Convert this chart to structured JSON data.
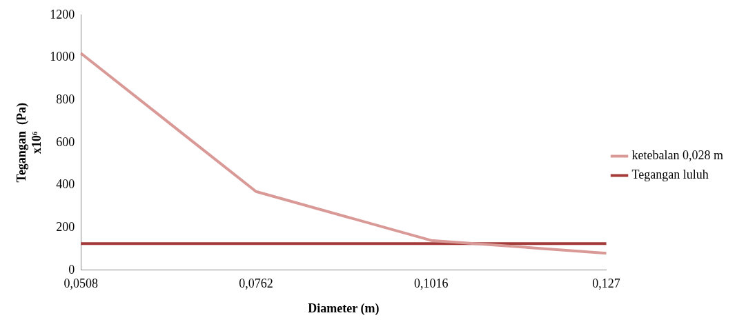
{
  "chart_data": {
    "type": "line",
    "xlabel": "Diameter (m)",
    "ylabel": "Tegangan  (Pa) x10⁶",
    "categories": [
      "0,0508",
      "0,0762",
      "0,1016",
      "0,127"
    ],
    "series": [
      {
        "name": "ketebalan 0,028 m",
        "color": "#d99a97",
        "values": [
          1020,
          370,
          140,
          80
        ]
      },
      {
        "name": "Tegangan luluh",
        "color": "#a33c38",
        "values": [
          125,
          125,
          125,
          125
        ]
      }
    ],
    "ylim": [
      0,
      1200
    ],
    "yticks": [
      0,
      200,
      400,
      600,
      800,
      1000,
      1200
    ],
    "grid": false,
    "legend": "right",
    "marker": "none",
    "line_style": "solid"
  }
}
